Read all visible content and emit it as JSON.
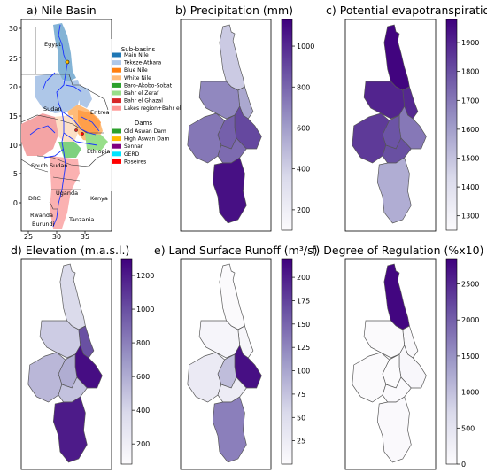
{
  "panels": {
    "a": {
      "title": "a) Nile Basin",
      "y_ticks": [
        "30",
        "25",
        "20",
        "15",
        "10",
        "5",
        "0"
      ],
      "x_ticks": [
        "25",
        "30",
        "35"
      ],
      "country_labels": [
        "Egypt",
        "Sudan",
        "South Sudan",
        "Ethiopia",
        "Eritrea",
        "DRC",
        "Uganda",
        "Kenya",
        "Rwanda",
        "Burundi",
        "Tanzania"
      ],
      "subbasins_title": "Sub-basins",
      "subbasins": [
        {
          "label": "Main Nile",
          "color": "#1f77b4"
        },
        {
          "label": "Tekeze-Atbara",
          "color": "#aec7e8"
        },
        {
          "label": "Blue Nile",
          "color": "#ff7f0e"
        },
        {
          "label": "White Nile",
          "color": "#ffbb78"
        },
        {
          "label": "Baro-Akobo-Sobat",
          "color": "#2ca02c"
        },
        {
          "label": "Bahr el Zeraf",
          "color": "#98df8a"
        },
        {
          "label": "Bahr el Ghazal",
          "color": "#d62728"
        },
        {
          "label": "Lakes region+Bahr el Jebel",
          "color": "#ff9896"
        }
      ],
      "dams_title": "Dams",
      "dams": [
        {
          "label": "Old Aswan Dam",
          "color": "#2ca02c"
        },
        {
          "label": "High Aswan Dam",
          "color": "#ffbb00"
        },
        {
          "label": "Sennar",
          "color": "#800080"
        },
        {
          "label": "GERD",
          "color": "#00e5ff"
        },
        {
          "label": "Roseires",
          "color": "#ff0000"
        }
      ]
    },
    "b": {
      "title": "b) Precipitation (mm)",
      "cbar_ticks": [
        "1000",
        "800",
        "600",
        "400",
        "200"
      ],
      "vmin": 100,
      "vmax": 1130,
      "values": {
        "main": 420,
        "atbara": 560,
        "white": 680,
        "blue": 900,
        "sobat": 820,
        "ghazal": 740,
        "zeraf": 780,
        "lakes": 1080
      }
    },
    "c": {
      "title": "c) Potential evapotranspiration (mm)",
      "cbar_ticks": [
        "1900",
        "1800",
        "1700",
        "1600",
        "1500",
        "1400",
        "1300"
      ],
      "vmin": 1250,
      "vmax": 1980,
      "values": {
        "main": 1970,
        "atbara": 1890,
        "white": 1900,
        "blue": 1700,
        "sobat": 1790,
        "ghazal": 1850,
        "zeraf": 1800,
        "lakes": 1560
      }
    },
    "d": {
      "title": "d) Elevation (m.a.s.l.)",
      "cbar_ticks": [
        "1200",
        "1000",
        "800",
        "600",
        "400",
        "200"
      ],
      "vmin": 80,
      "vmax": 1300,
      "values": {
        "main": 380,
        "atbara": 1000,
        "white": 450,
        "blue": 1250,
        "sobat": 600,
        "ghazal": 550,
        "zeraf": 500,
        "lakes": 1200
      }
    },
    "e": {
      "title": "e) Land Surface Runoff (m³/s)",
      "cbar_ticks": [
        "200",
        "175",
        "150",
        "125",
        "100",
        "75",
        "50",
        "25"
      ],
      "vmin": 0,
      "vmax": 220,
      "values": {
        "main": 2,
        "atbara": 8,
        "white": 10,
        "blue": 210,
        "sobat": 80,
        "ghazal": 28,
        "zeraf": 25,
        "lakes": 130
      }
    },
    "f": {
      "title": "f) Degree of Regulation (%x10)",
      "cbar_ticks": [
        "2500",
        "2000",
        "1500",
        "1000",
        "500",
        "0"
      ],
      "vmin": 0,
      "vmax": 2850,
      "values": {
        "main": 2800,
        "atbara": 60,
        "white": 30,
        "blue": 90,
        "sobat": 10,
        "ghazal": 20,
        "zeraf": 15,
        "lakes": 40
      }
    }
  }
}
